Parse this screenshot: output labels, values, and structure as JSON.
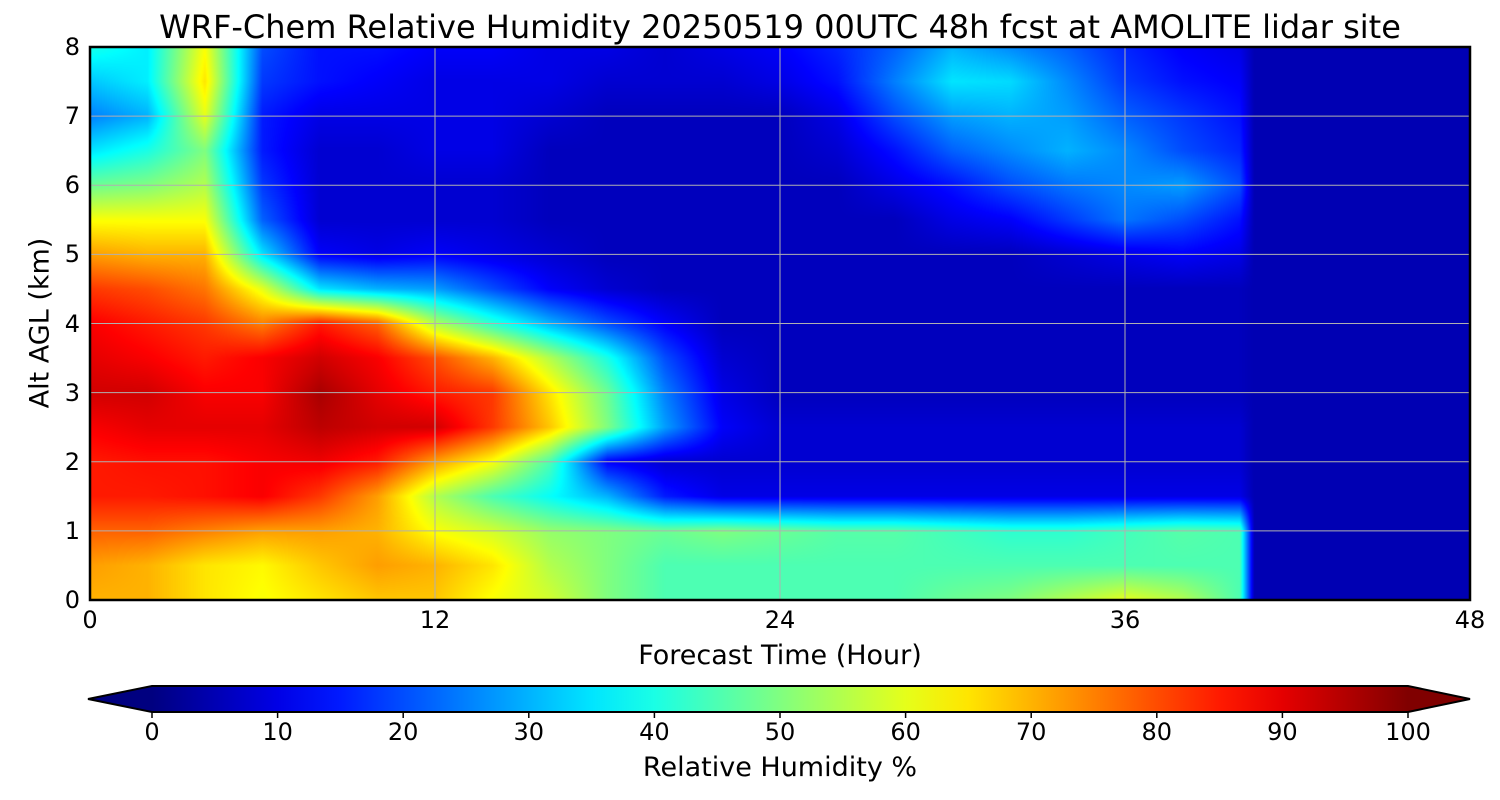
{
  "chart_data": {
    "type": "heatmap",
    "title": "WRF-Chem Relative Humidity 20250519 00UTC 48h fcst at AMOLITE lidar site",
    "xlabel": "Forecast Time (Hour)",
    "ylabel": "Alt AGL (km)",
    "xlim": [
      0,
      48
    ],
    "ylim": [
      0,
      8
    ],
    "x_ticks": [
      "0",
      "12",
      "24",
      "36",
      "48"
    ],
    "y_ticks": [
      "0",
      "1",
      "2",
      "3",
      "4",
      "5",
      "6",
      "7",
      "8"
    ],
    "grid": true,
    "colorbar": {
      "label": "Relative Humidity %",
      "range": [
        0,
        100
      ],
      "ticks": [
        "0",
        "10",
        "20",
        "30",
        "40",
        "50",
        "60",
        "70",
        "80",
        "90",
        "100"
      ],
      "colormap": "jet",
      "extend": "both"
    },
    "x": [
      0,
      2,
      4,
      6,
      8,
      10,
      12,
      14,
      16,
      18,
      20,
      22,
      24,
      26,
      28,
      30,
      32,
      34,
      36,
      38,
      40
    ],
    "y": [
      0,
      0.5,
      1,
      1.5,
      2,
      2.5,
      3,
      3.5,
      4,
      4.5,
      5,
      5.5,
      6,
      6.5,
      7,
      7.5,
      8
    ],
    "z": [
      [
        70,
        70,
        65,
        62,
        65,
        68,
        68,
        62,
        58,
        50,
        45,
        45,
        45,
        45,
        45,
        48,
        50,
        55,
        60,
        55,
        45
      ],
      [
        72,
        70,
        65,
        63,
        68,
        72,
        70,
        65,
        55,
        50,
        45,
        45,
        45,
        45,
        45,
        45,
        45,
        45,
        45,
        45,
        45
      ],
      [
        78,
        78,
        75,
        72,
        72,
        70,
        62,
        58,
        52,
        50,
        48,
        50,
        48,
        46,
        46,
        44,
        42,
        42,
        44,
        46,
        45
      ],
      [
        85,
        85,
        86,
        88,
        82,
        72,
        55,
        45,
        38,
        30,
        15,
        10,
        10,
        10,
        10,
        10,
        10,
        10,
        10,
        10,
        10
      ],
      [
        85,
        86,
        86,
        88,
        89,
        85,
        72,
        62,
        45,
        12,
        8,
        8,
        8,
        8,
        8,
        8,
        8,
        8,
        8,
        8,
        8
      ],
      [
        88,
        90,
        90,
        90,
        94,
        92,
        92,
        82,
        68,
        50,
        28,
        12,
        8,
        8,
        8,
        8,
        8,
        8,
        8,
        8,
        8
      ],
      [
        92,
        92,
        88,
        88,
        96,
        90,
        85,
        82,
        65,
        48,
        25,
        10,
        6,
        6,
        6,
        6,
        6,
        6,
        6,
        6,
        6
      ],
      [
        90,
        88,
        85,
        88,
        92,
        88,
        80,
        70,
        55,
        40,
        20,
        8,
        6,
        6,
        6,
        6,
        6,
        6,
        6,
        6,
        6
      ],
      [
        88,
        85,
        82,
        75,
        85,
        78,
        55,
        42,
        30,
        20,
        12,
        6,
        6,
        6,
        6,
        6,
        6,
        6,
        6,
        6,
        6
      ],
      [
        82,
        80,
        76,
        60,
        35,
        30,
        28,
        20,
        12,
        8,
        6,
        6,
        6,
        6,
        6,
        6,
        6,
        6,
        6,
        6,
        6
      ],
      [
        72,
        70,
        70,
        35,
        12,
        10,
        12,
        10,
        8,
        6,
        6,
        6,
        6,
        6,
        6,
        6,
        6,
        8,
        10,
        12,
        10
      ],
      [
        62,
        62,
        62,
        22,
        8,
        8,
        8,
        8,
        6,
        6,
        6,
        6,
        6,
        6,
        6,
        10,
        12,
        18,
        24,
        20,
        14
      ],
      [
        48,
        50,
        55,
        18,
        8,
        8,
        8,
        8,
        6,
        6,
        6,
        6,
        6,
        6,
        10,
        14,
        20,
        24,
        26,
        28,
        20
      ],
      [
        35,
        40,
        50,
        15,
        8,
        8,
        10,
        10,
        6,
        6,
        6,
        6,
        6,
        8,
        14,
        22,
        26,
        30,
        26,
        20,
        16
      ],
      [
        25,
        30,
        60,
        15,
        10,
        10,
        10,
        10,
        8,
        6,
        6,
        6,
        6,
        10,
        20,
        28,
        30,
        28,
        22,
        18,
        14
      ],
      [
        32,
        36,
        65,
        18,
        14,
        12,
        10,
        10,
        10,
        8,
        8,
        8,
        10,
        14,
        25,
        35,
        34,
        26,
        18,
        14,
        12
      ],
      [
        40,
        36,
        62,
        20,
        14,
        14,
        12,
        12,
        10,
        10,
        8,
        10,
        12,
        16,
        22,
        30,
        26,
        22,
        16,
        12,
        10
      ]
    ],
    "fill_after_x_value": 5,
    "fill_after_x_start": 40.5
  }
}
